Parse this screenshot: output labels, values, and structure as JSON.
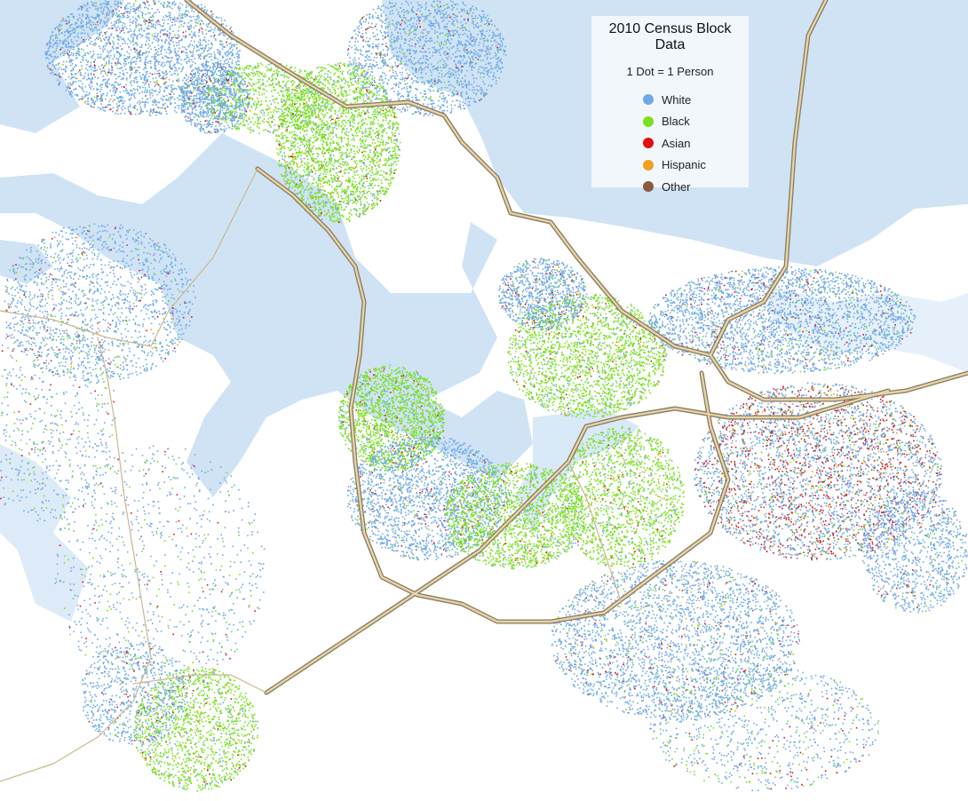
{
  "legend": {
    "title": "2010 Census Block Data",
    "subtitle": "1 Dot = 1 Person",
    "items": [
      {
        "label": "White",
        "color": "#6fa8e6"
      },
      {
        "label": "Black",
        "color": "#79e020"
      },
      {
        "label": "Asian",
        "color": "#e01010"
      },
      {
        "label": "Hispanic",
        "color": "#f0a020"
      },
      {
        "label": "Other",
        "color": "#8a5a3c"
      }
    ]
  },
  "colors": {
    "water": "#cfe3f5",
    "land": "#ffffff",
    "roads": "#c8a878",
    "road_outline": "#8a7a60"
  }
}
